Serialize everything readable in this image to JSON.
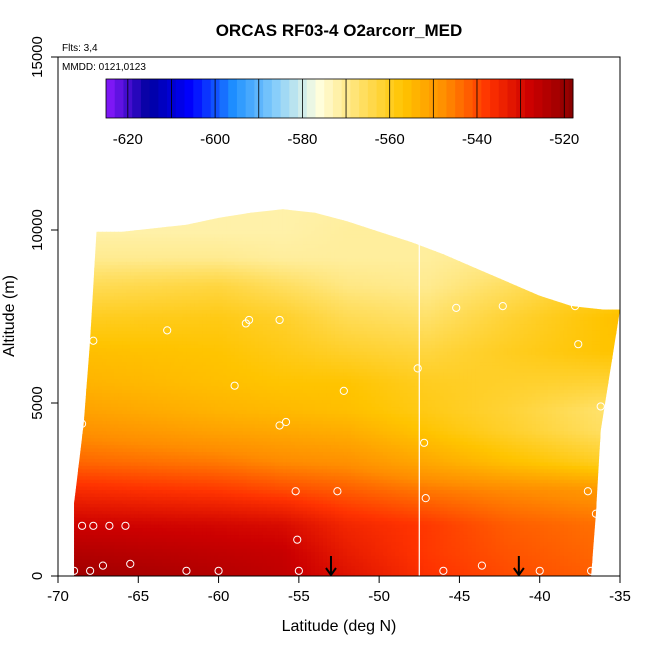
{
  "chart_data": {
    "type": "heatmap",
    "title": "ORCAS RF03-4 O2arcorr_MED",
    "xlabel": "Latitude (deg N)",
    "ylabel": "Altitude (m)",
    "xlim": [
      -70,
      -35
    ],
    "ylim": [
      0,
      15000
    ],
    "x_ticks": [
      -70,
      -65,
      -60,
      -55,
      -50,
      -45,
      -40,
      -35
    ],
    "y_ticks": [
      0,
      5000,
      10000,
      15000
    ],
    "annotations": {
      "flights": "Flts: 3,4",
      "dates": "MMDD: 0121,0123"
    },
    "colorbar": {
      "min": -625,
      "max": -518,
      "step": 10,
      "ticks": [
        -620,
        -600,
        -580,
        -560,
        -540,
        -520
      ],
      "colors": [
        "#8B1AFF",
        "#0000A0",
        "#0000FF",
        "#1E90FF",
        "#87CEFA",
        "#FFFFE0",
        "#FFE066",
        "#FFC400",
        "#FF8C00",
        "#FF3300",
        "#CC0000",
        "#8B0000"
      ]
    },
    "ceiling": [
      [
        -67.6,
        9950
      ],
      [
        -66,
        9950
      ],
      [
        -64,
        10050
      ],
      [
        -62,
        10150
      ],
      [
        -60,
        10350
      ],
      [
        -58,
        10500
      ],
      [
        -56,
        10600
      ],
      [
        -54,
        10500
      ],
      [
        -52,
        10250
      ],
      [
        -50,
        9950
      ],
      [
        -48,
        9650
      ],
      [
        -46,
        9300
      ],
      [
        -44,
        8900
      ],
      [
        -42,
        8500
      ],
      [
        -40,
        8100
      ],
      [
        -38,
        7800
      ],
      [
        -36,
        7700
      ],
      [
        -35,
        7700
      ]
    ],
    "floor_edge": [
      [
        -69,
        0
      ],
      [
        -69,
        2100
      ],
      [
        -68.4,
        4400
      ],
      [
        -68,
        6800
      ],
      [
        -67.6,
        9950
      ]
    ],
    "right_edge": [
      [
        -35,
        7700
      ],
      [
        -36.2,
        4200
      ],
      [
        -36.5,
        1800
      ],
      [
        -36.8,
        0
      ]
    ],
    "profiles": [
      {
        "alt": 0,
        "values": [
          [
            -69,
            -521
          ],
          [
            -60,
            -524
          ],
          [
            -56,
            -526
          ],
          [
            -52,
            -531
          ],
          [
            -47,
            -537
          ],
          [
            -42,
            -540
          ],
          [
            -36.8,
            -542
          ]
        ]
      },
      {
        "alt": 700,
        "values": [
          [
            -69,
            -524
          ],
          [
            -60,
            -526
          ],
          [
            -56,
            -527
          ],
          [
            -52,
            -533
          ],
          [
            -47,
            -538
          ],
          [
            -42,
            -541
          ],
          [
            -36.8,
            -543
          ]
        ]
      },
      {
        "alt": 1500,
        "values": [
          [
            -69,
            -528
          ],
          [
            -60,
            -529
          ],
          [
            -56,
            -530
          ],
          [
            -52,
            -535
          ],
          [
            -47,
            -538
          ],
          [
            -42,
            -542
          ],
          [
            -36.6,
            -544
          ]
        ]
      },
      {
        "alt": 2500,
        "values": [
          [
            -69,
            -536
          ],
          [
            -60,
            -538
          ],
          [
            -56,
            -540
          ],
          [
            -52,
            -542
          ],
          [
            -47,
            -545
          ],
          [
            -42,
            -547
          ],
          [
            -36.4,
            -549
          ]
        ]
      },
      {
        "alt": 3300,
        "values": [
          [
            -68.8,
            -543
          ],
          [
            -60,
            -545
          ],
          [
            -56,
            -547
          ],
          [
            -52,
            -548
          ],
          [
            -47,
            -552
          ],
          [
            -42,
            -556
          ],
          [
            -36.2,
            -560
          ]
        ]
      },
      {
        "alt": 4200,
        "values": [
          [
            -68.6,
            -548
          ],
          [
            -60,
            -551
          ],
          [
            -56,
            -552
          ],
          [
            -52,
            -553
          ],
          [
            -47,
            -557
          ],
          [
            -42,
            -561
          ],
          [
            -36.2,
            -566
          ]
        ]
      },
      {
        "alt": 4800,
        "values": [
          [
            -68.4,
            -551
          ],
          [
            -60,
            -554
          ],
          [
            -56,
            -555
          ],
          [
            -52,
            -556
          ],
          [
            -47,
            -559
          ],
          [
            -42,
            -562
          ],
          [
            -36.2,
            -567
          ]
        ]
      },
      {
        "alt": 5600,
        "values": [
          [
            -68.2,
            -554
          ],
          [
            -60,
            -556
          ],
          [
            -56,
            -557
          ],
          [
            -52,
            -557
          ],
          [
            -47,
            -560
          ],
          [
            -42,
            -561
          ],
          [
            -36.2,
            -562
          ]
        ]
      },
      {
        "alt": 6500,
        "values": [
          [
            -68,
            -556
          ],
          [
            -60,
            -557
          ],
          [
            -56,
            -559
          ],
          [
            -52,
            -561
          ],
          [
            -47,
            -563
          ],
          [
            -42,
            -560
          ],
          [
            -36,
            -557
          ]
        ]
      },
      {
        "alt": 7500,
        "values": [
          [
            -67.8,
            -560
          ],
          [
            -60,
            -559
          ],
          [
            -56,
            -561
          ],
          [
            -52,
            -565
          ],
          [
            -47,
            -567
          ],
          [
            -42,
            -562
          ],
          [
            -35,
            -556
          ]
        ]
      },
      {
        "alt": 8400,
        "values": [
          [
            -67.7,
            -565
          ],
          [
            -60,
            -563
          ],
          [
            -56,
            -566
          ],
          [
            -52,
            -569
          ],
          [
            -47,
            -570
          ],
          [
            -42,
            -566
          ],
          [
            -38,
            -562
          ]
        ]
      },
      {
        "alt": 9200,
        "values": [
          [
            -67.6,
            -570
          ],
          [
            -60,
            -570
          ],
          [
            -56,
            -571
          ],
          [
            -52,
            -571
          ],
          [
            -47,
            -571
          ],
          [
            -44,
            -570
          ]
        ]
      },
      {
        "alt": 10000,
        "values": [
          [
            -67.6,
            -572
          ],
          [
            -60,
            -572
          ],
          [
            -56,
            -572
          ],
          [
            -52,
            -571
          ],
          [
            -47,
            -571
          ]
        ]
      },
      {
        "alt": 10700,
        "values": [
          [
            -67.6,
            -572
          ],
          [
            -56,
            -572
          ],
          [
            -47,
            -571
          ]
        ]
      }
    ],
    "observation_points": [
      [
        -69,
        150
      ],
      [
        -68,
        150
      ],
      [
        -67.2,
        300
      ],
      [
        -65.5,
        350
      ],
      [
        -62,
        150
      ],
      [
        -60,
        150
      ],
      [
        -55,
        150
      ],
      [
        -46,
        150
      ],
      [
        -43.6,
        300
      ],
      [
        -40,
        150
      ],
      [
        -36.8,
        150
      ],
      [
        -68.5,
        1450
      ],
      [
        -67.8,
        1450
      ],
      [
        -66.8,
        1450
      ],
      [
        -65.8,
        1450
      ],
      [
        -55.1,
        1050
      ],
      [
        -55.2,
        2450
      ],
      [
        -52.6,
        2450
      ],
      [
        -47.1,
        2250
      ],
      [
        -37,
        2450
      ],
      [
        -36.5,
        1800
      ],
      [
        -47.2,
        3850
      ],
      [
        -55.8,
        4450
      ],
      [
        -56.2,
        4350
      ],
      [
        -68.5,
        4400
      ],
      [
        -59,
        5500
      ],
      [
        -52.2,
        5350
      ],
      [
        -58.3,
        7300
      ],
      [
        -58.1,
        7400
      ],
      [
        -56.2,
        7400
      ],
      [
        -63.2,
        7100
      ],
      [
        -67.8,
        6800
      ],
      [
        -47.6,
        6000
      ],
      [
        -45.2,
        7750
      ],
      [
        -42.3,
        7800
      ],
      [
        -37.8,
        7800
      ],
      [
        -37.6,
        6700
      ],
      [
        -36.2,
        4900
      ]
    ],
    "arrows": [
      [
        -53,
        0
      ],
      [
        -41.3,
        0
      ]
    ],
    "flight_track": [
      [
        -47.5,
        0
      ],
      [
        -47.5,
        9600
      ]
    ]
  }
}
